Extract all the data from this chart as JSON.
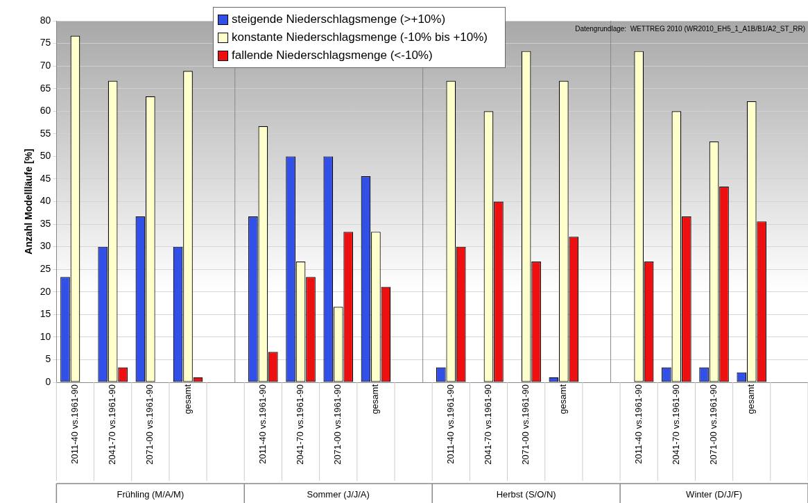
{
  "chart_data": {
    "type": "bar",
    "ylabel": "Anzahl Modellläufe [%]",
    "categories": [
      "2011-40 vs.1961-90",
      "2041-70 vs.1961-90",
      "2071-00 vs.1961-90",
      "gesamt",
      null,
      "2011-40 vs.1961-90",
      "2041-70 vs.1961-90",
      "2071-00 vs.1961-90",
      "gesamt",
      null,
      "2011-40 vs.1961-90",
      "2041-70 vs.1961-90",
      "2071-00 vs.1961-90",
      "gesamt",
      null,
      "2011-40 vs.1961-90",
      "2041-70 vs.1961-90",
      "2071-00 vs.1961-90",
      "gesamt",
      null
    ],
    "series": [
      {
        "name": "steigende Niederschlagsmenge (>+10%)",
        "color": "#3050e8",
        "values": [
          23.3,
          30,
          36.7,
          30,
          null,
          36.7,
          50,
          50,
          45.6,
          null,
          3.3,
          0,
          0,
          1.1,
          null,
          0,
          3.3,
          3.3,
          2.2,
          null
        ]
      },
      {
        "name": "konstante Niederschlagsmenge (-10% bis +10%)",
        "color": "#ffffcc",
        "values": [
          76.7,
          66.7,
          63.3,
          68.9,
          null,
          56.7,
          26.7,
          16.7,
          33.3,
          null,
          66.7,
          60,
          73.3,
          66.7,
          null,
          73.3,
          60,
          53.3,
          62.2,
          null
        ]
      },
      {
        "name": "fallende Niederschlagsmenge (<-10%)",
        "color": "#ee1010",
        "values": [
          0,
          3.3,
          0,
          1.1,
          null,
          6.7,
          23.3,
          33.3,
          21.1,
          null,
          30,
          40,
          26.7,
          32.2,
          null,
          26.7,
          36.7,
          43.3,
          35.6,
          null
        ]
      }
    ],
    "ylim": [
      0,
      80
    ],
    "yticks": [
      0,
      5,
      10,
      15,
      20,
      25,
      30,
      35,
      40,
      45,
      50,
      55,
      60,
      65,
      70,
      75,
      80
    ],
    "grid": "y",
    "legend": "top",
    "annotations": [
      "Datengrundlage:  WETTREG 2010 (WR2010_EH5_1_A1B/B1/A2_ST_RR)",
      "Frühling (M/A/M)",
      "Sommer (J/J/A)",
      "Herbst (S/O/N)",
      "Winter (D/J/F)"
    ]
  }
}
